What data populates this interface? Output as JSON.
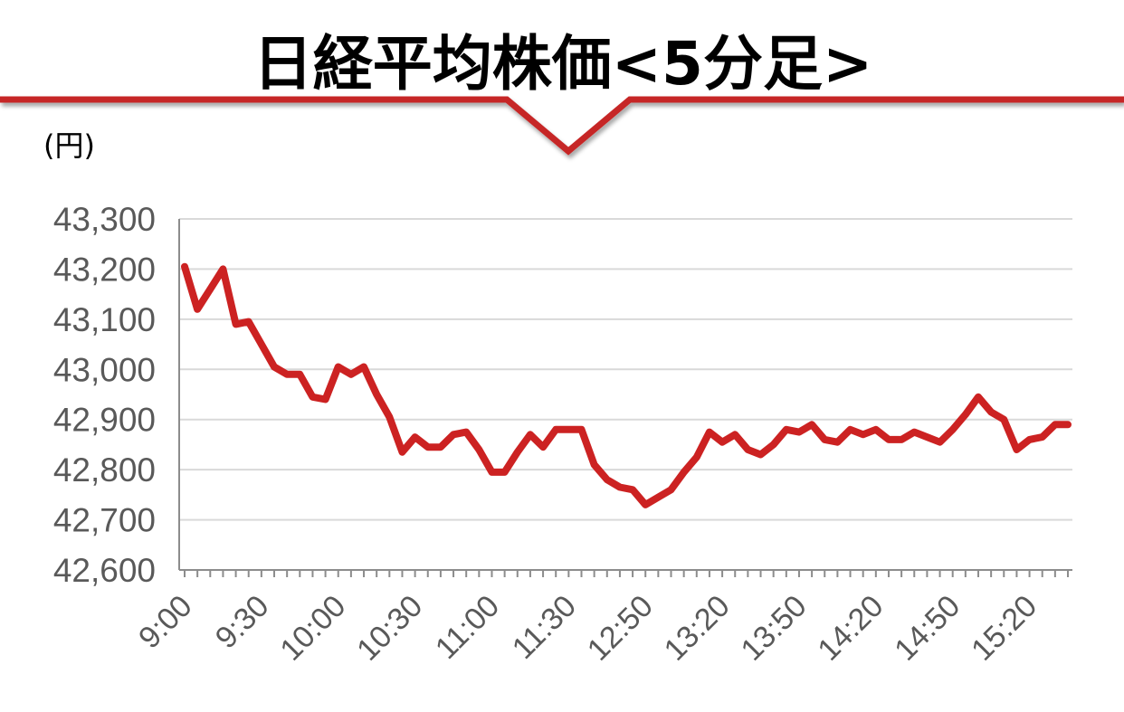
{
  "chart_data": {
    "type": "line",
    "title": "日経平均株価<5分足>",
    "ylabel": "(円)",
    "xlabel": "",
    "ylim": [
      42600,
      43300
    ],
    "y_ticks": [
      "43,300",
      "43,200",
      "43,100",
      "43,000",
      "42,900",
      "42,800",
      "42,700",
      "42,600"
    ],
    "x_tick_labels": [
      "9:00",
      "9:30",
      "10:00",
      "10:30",
      "11:00",
      "11:30",
      "12:50",
      "13:20",
      "13:50",
      "14:20",
      "14:50",
      "15:20"
    ],
    "grid": true,
    "series_color": "#cc2222",
    "values": [
      43205,
      43120,
      43160,
      43200,
      43090,
      43095,
      43050,
      43005,
      42990,
      42990,
      42945,
      42940,
      43005,
      42990,
      43005,
      42950,
      42905,
      42835,
      42865,
      42845,
      42845,
      42870,
      42875,
      42840,
      42795,
      42795,
      42835,
      42870,
      42845,
      42880,
      42880,
      42880,
      42810,
      42780,
      42765,
      42760,
      42730,
      42745,
      42760,
      42795,
      42825,
      42875,
      42855,
      42870,
      42840,
      42830,
      42850,
      42880,
      42875,
      42890,
      42860,
      42855,
      42880,
      42870,
      42880,
      42860,
      42860,
      42875,
      42865,
      42855,
      42880,
      42910,
      42945,
      42915,
      42900,
      42840,
      42860,
      42865,
      42890,
      42890
    ]
  }
}
